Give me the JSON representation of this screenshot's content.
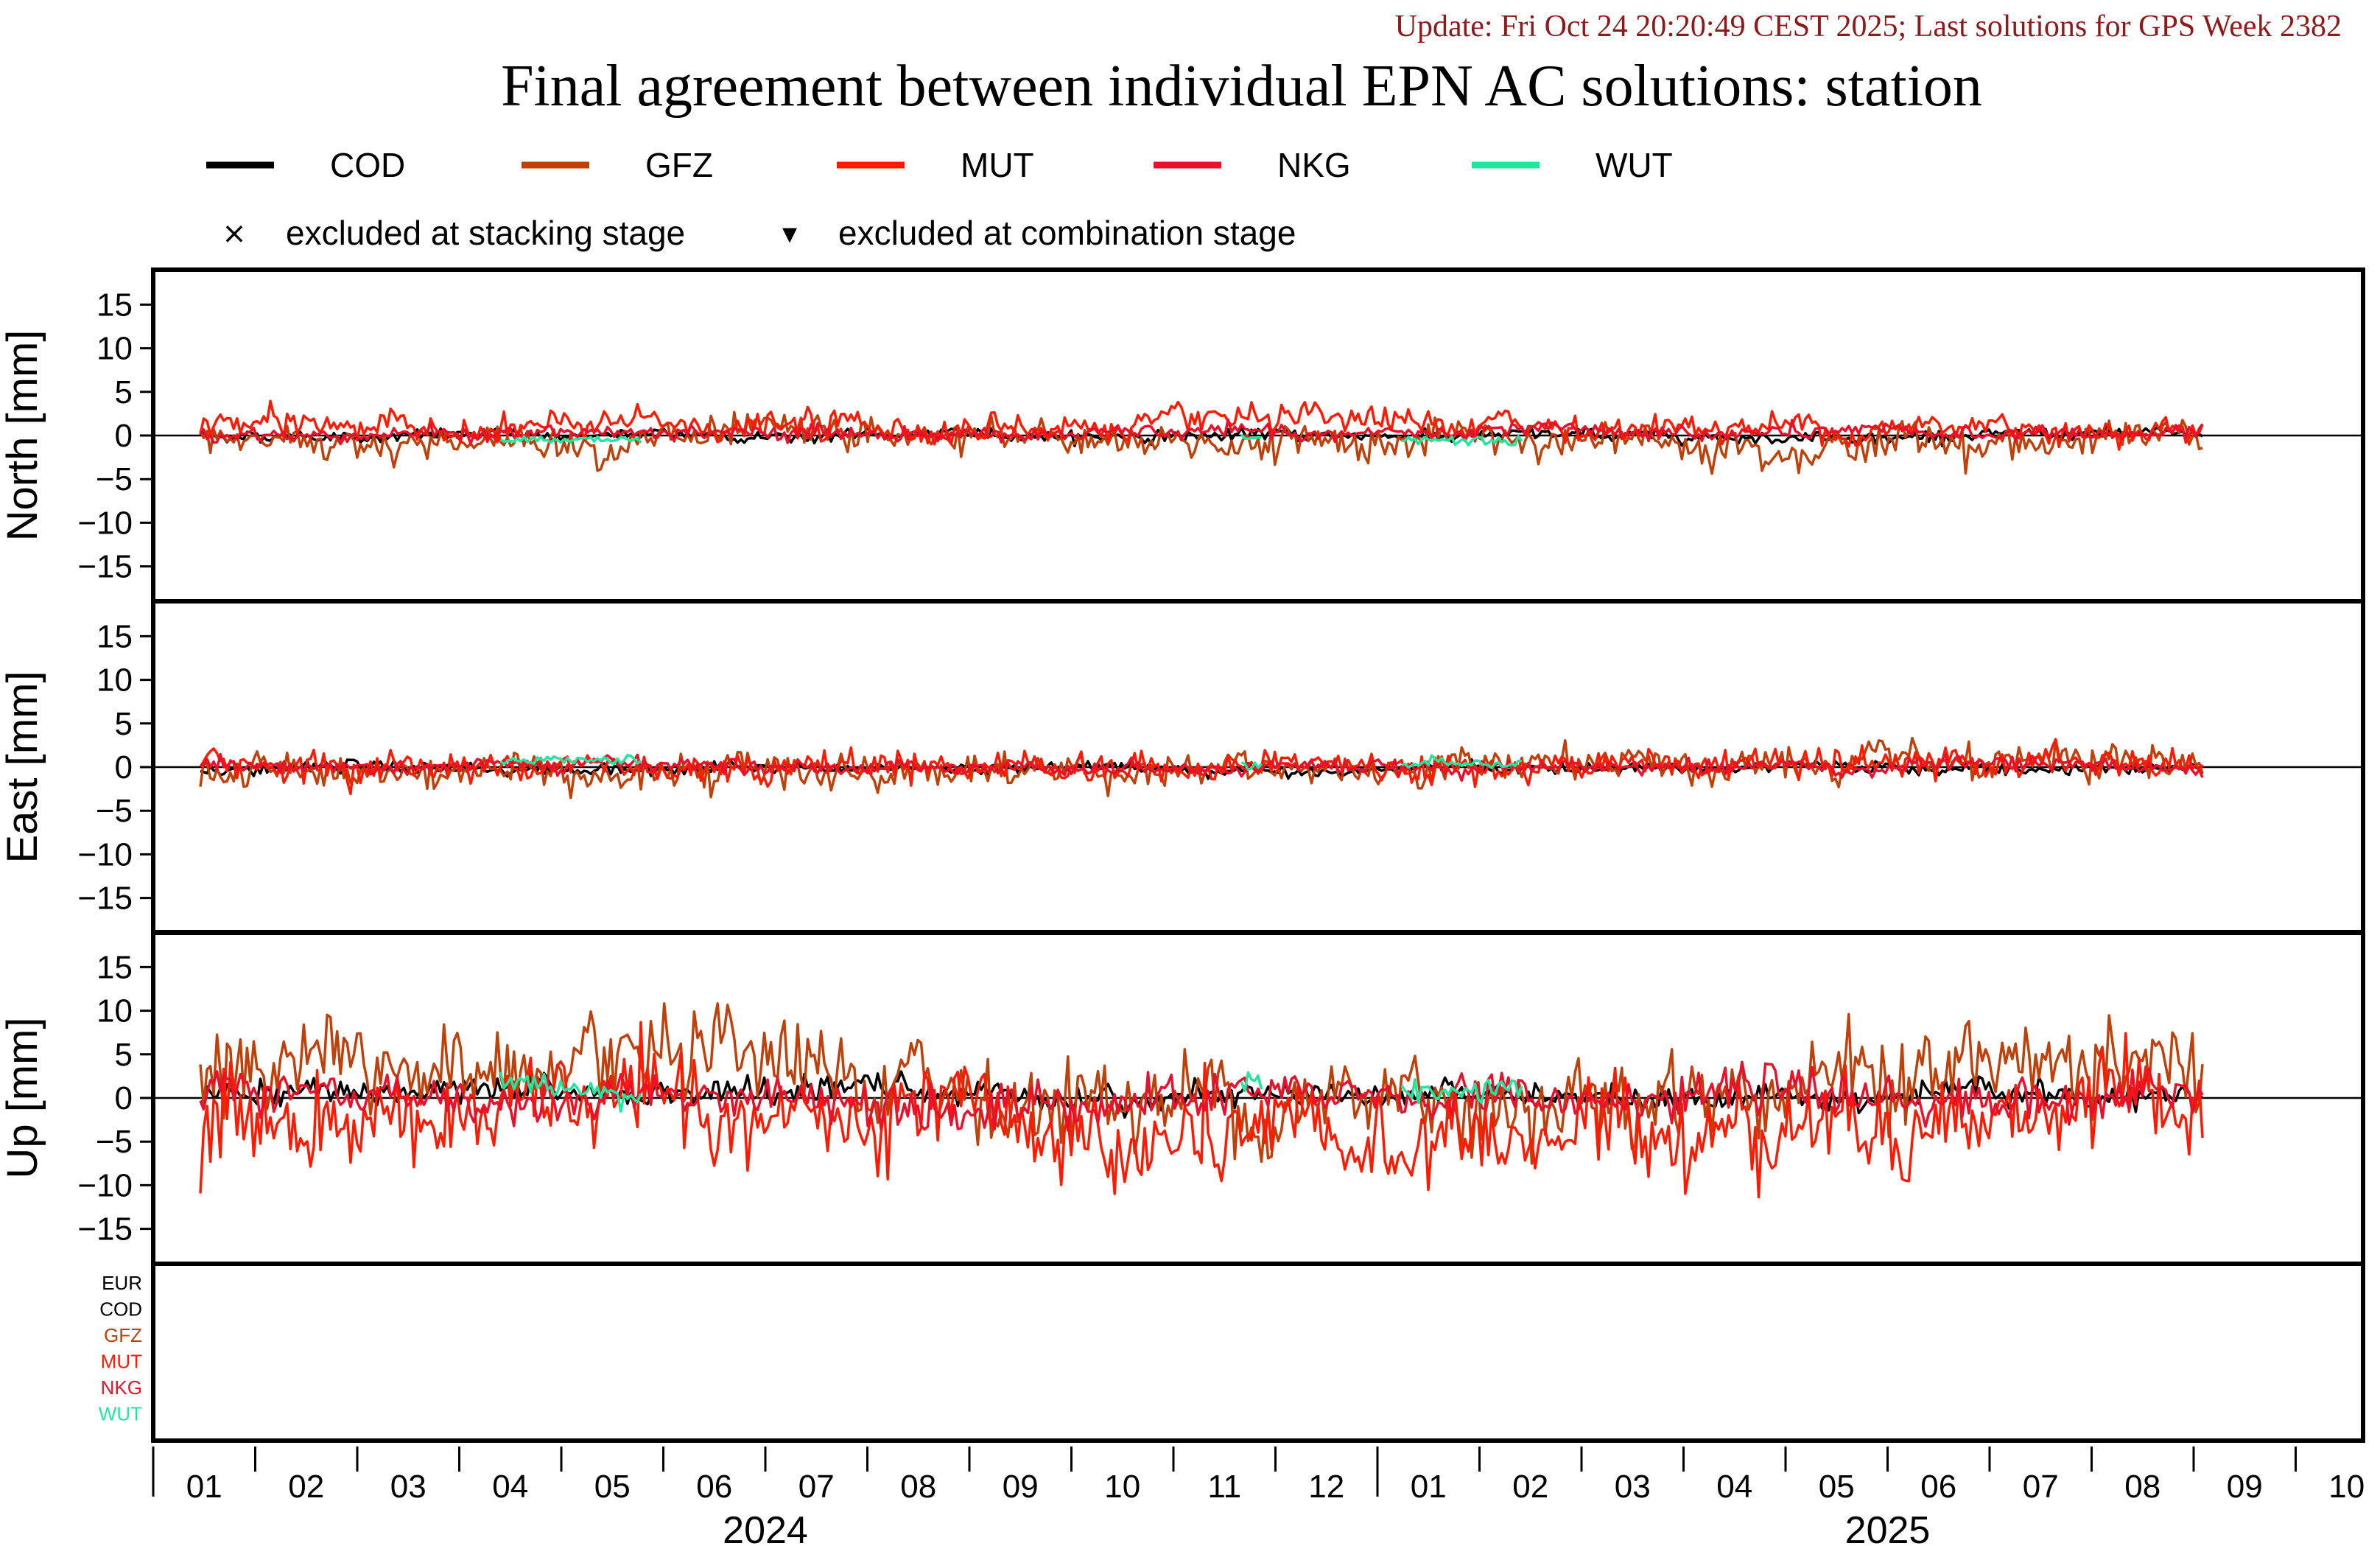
{
  "header": {
    "update_text": "Update: Fri Oct 24 20:20:49 CEST 2025; Last solutions for GPS Week 2382",
    "title": "Final agreement between individual EPN AC solutions: station"
  },
  "legend": {
    "series": [
      {
        "name": "COD",
        "color": "#000000"
      },
      {
        "name": "GFZ",
        "color": "#c0400a"
      },
      {
        "name": "MUT",
        "color": "#ff1a00"
      },
      {
        "name": "NKG",
        "color": "#e8102a"
      },
      {
        "name": "WUT",
        "color": "#22e6a0"
      }
    ],
    "markers": [
      {
        "symbol": "×",
        "label": "excluded at stacking stage"
      },
      {
        "symbol": "▾",
        "label": "excluded at combination stage"
      }
    ]
  },
  "chart_data": {
    "type": "line",
    "x_axis": {
      "start": "2024-01-01",
      "end": "2025-10-31",
      "month_ticks": [
        "01",
        "02",
        "03",
        "04",
        "05",
        "06",
        "07",
        "08",
        "09",
        "10",
        "11",
        "12",
        "01",
        "02",
        "03",
        "04",
        "05",
        "06",
        "07",
        "08",
        "09",
        "10"
      ],
      "years": [
        "2024",
        "2025"
      ]
    },
    "panels": [
      {
        "ylabel": "North [mm]",
        "ylim": [
          -19,
          19
        ],
        "yticks": [
          15,
          10,
          5,
          0,
          -5,
          -10,
          -15
        ],
        "series": [
          {
            "name": "COD",
            "amplitude": 0.4,
            "offset": 0
          },
          {
            "name": "GFZ",
            "amplitude": 1.2,
            "offset": -0.6
          },
          {
            "name": "MUT",
            "amplitude": 1.0,
            "offset": 1.0
          },
          {
            "name": "NKG",
            "amplitude": 0.5,
            "offset": 0.2
          },
          {
            "name": "WUT",
            "amplitude": 0.3,
            "offset": -0.4
          }
        ]
      },
      {
        "ylabel": "East [mm]",
        "ylim": [
          -19,
          19
        ],
        "yticks": [
          15,
          10,
          5,
          0,
          -5,
          -10,
          -15
        ],
        "series": [
          {
            "name": "COD",
            "amplitude": 0.4,
            "offset": -0.2
          },
          {
            "name": "GFZ",
            "amplitude": 1.2,
            "offset": -0.2
          },
          {
            "name": "MUT",
            "amplitude": 1.0,
            "offset": 0.3
          },
          {
            "name": "NKG",
            "amplitude": 0.5,
            "offset": 0.1
          },
          {
            "name": "WUT",
            "amplitude": 0.4,
            "offset": 0.4
          }
        ]
      },
      {
        "ylabel": "Up [mm]",
        "ylim": [
          -19,
          19
        ],
        "yticks": [
          15,
          10,
          5,
          0,
          -5,
          -10,
          -15
        ],
        "series": [
          {
            "name": "COD",
            "amplitude": 0.9,
            "offset": 0.5
          },
          {
            "name": "GFZ",
            "amplitude": 3.2,
            "offset": 1.5
          },
          {
            "name": "MUT",
            "amplitude": 3.2,
            "offset": -3.0
          },
          {
            "name": "NKG",
            "amplitude": 1.5,
            "offset": 0
          },
          {
            "name": "WUT",
            "amplitude": 0.9,
            "offset": 1.0
          }
        ]
      }
    ],
    "ac_list": [
      {
        "name": "EUR",
        "color": "#000000"
      },
      {
        "name": "COD",
        "color": "#000000"
      },
      {
        "name": "GFZ",
        "color": "#c0400a"
      },
      {
        "name": "MUT",
        "color": "#ff1a00"
      },
      {
        "name": "NKG",
        "color": "#e8102a"
      },
      {
        "name": "WUT",
        "color": "#22e6a0"
      }
    ]
  }
}
